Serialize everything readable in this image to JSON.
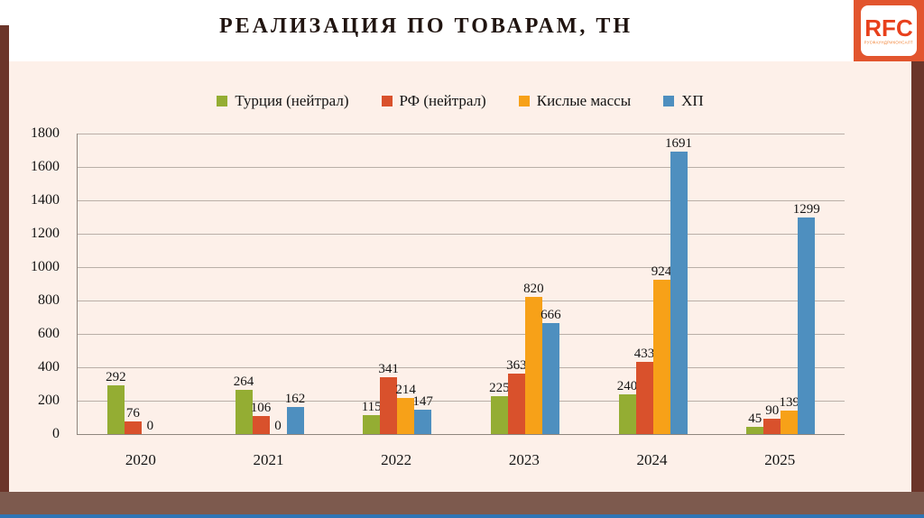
{
  "title": "РЕАЛИЗАЦИЯ ПО ТОВАРАМ, ТН",
  "logo": {
    "text": "RFC",
    "subtext": "РУСФАУНДРИКОНСАЛТ"
  },
  "chart_data": {
    "type": "bar",
    "title": "РЕАЛИЗАЦИЯ ПО ТОВАРАМ, ТН",
    "categories": [
      "2020",
      "2021",
      "2022",
      "2023",
      "2024",
      "2025"
    ],
    "series": [
      {
        "name": "Турция (нейтрал)",
        "color": "#94ad33",
        "values": [
          292,
          264,
          115,
          225,
          240,
          45
        ]
      },
      {
        "name": "РФ (нейтрал)",
        "color": "#d9512c",
        "values": [
          76,
          106,
          341,
          363,
          433,
          90
        ]
      },
      {
        "name": "Кислые массы",
        "color": "#f7a118",
        "values": [
          0,
          0,
          214,
          820,
          924,
          139
        ]
      },
      {
        "name": "ХП",
        "color": "#4e8fbf",
        "values": [
          null,
          162,
          147,
          666,
          1691,
          1299
        ]
      }
    ],
    "xlabel": "",
    "ylabel": "",
    "ylim": [
      0,
      1800
    ],
    "ytick_step": 200,
    "grid": true,
    "legend_position": "top"
  },
  "colors": {
    "panel_bg": "#fdf0e9",
    "accent_bar": "#6b352a",
    "bottom_bar": "#7d5a4e",
    "bottom_line": "#2e75b6",
    "logo_strip": "#e2552e",
    "logo_text": "#e8401c",
    "gridline": "#b9afa7",
    "axis": "#8f867e",
    "title_color": "#201410"
  }
}
